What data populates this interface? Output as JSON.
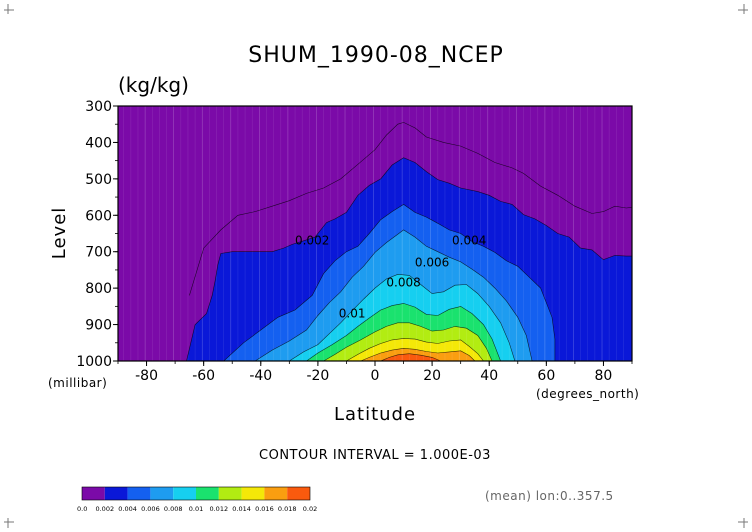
{
  "chart_data": {
    "type": "contour",
    "title": "SHUM_1990-08_NCEP",
    "units": "(kg/kg)",
    "ylabel": "Level",
    "xlabel": "Latitude",
    "x_unit_label": "(degrees_north)",
    "y_unit_label": "(millibar)",
    "xlim": [
      -90,
      90
    ],
    "ylim": [
      1000,
      300
    ],
    "x_ticks": [
      -80,
      -60,
      -40,
      -20,
      0,
      20,
      40,
      60,
      80
    ],
    "y_ticks": [
      300,
      400,
      500,
      600,
      700,
      800,
      900,
      1000
    ],
    "contour_interval_text": "CONTOUR INTERVAL = 1.000E-03",
    "footer_text": "(mean) lon:0..357.5",
    "contour_labels": [
      {
        "text": "0.002",
        "lat": -22,
        "lev": 680
      },
      {
        "text": "0.004",
        "lat": 33,
        "lev": 680
      },
      {
        "text": "0.006",
        "lat": 20,
        "lev": 740
      },
      {
        "text": "0.008",
        "lat": 10,
        "lev": 795
      },
      {
        "text": "0.01",
        "lat": -8,
        "lev": 880
      }
    ],
    "colorbar": {
      "ticks": [
        "0.0",
        "0.002",
        "0.004",
        "0.006",
        "0.008",
        "0.01",
        "0.012",
        "0.014",
        "0.016",
        "0.018",
        "0.02"
      ],
      "colors": [
        "#7b0aa8",
        "#0a18d8",
        "#1460f0",
        "#1e9cf0",
        "#16cff0",
        "#1ae26e",
        "#b2ec12",
        "#f4e808",
        "#fa9e10",
        "#fa5a0e",
        "#f01414"
      ]
    },
    "levels": [
      {
        "value": 0.002,
        "points": [
          [
            -66,
            1000
          ],
          [
            -63,
            900
          ],
          [
            -59,
            870
          ],
          [
            -57,
            820
          ],
          [
            -56,
            780
          ],
          [
            -55,
            735
          ],
          [
            -54,
            705
          ],
          [
            -50,
            700
          ],
          [
            -36,
            700
          ],
          [
            -32,
            690
          ],
          [
            -29,
            680
          ],
          [
            -25,
            670
          ],
          [
            -21,
            660
          ],
          [
            -17,
            620
          ],
          [
            -14,
            610
          ],
          [
            -10,
            592
          ],
          [
            -6,
            545
          ],
          [
            -2,
            518
          ],
          [
            2,
            500
          ],
          [
            6,
            462
          ],
          [
            10,
            442
          ],
          [
            14,
            455
          ],
          [
            18,
            480
          ],
          [
            22,
            502
          ],
          [
            26,
            512
          ],
          [
            30,
            525
          ],
          [
            36,
            535
          ],
          [
            40,
            545
          ],
          [
            44,
            562
          ],
          [
            48,
            570
          ],
          [
            52,
            598
          ],
          [
            56,
            610
          ],
          [
            60,
            628
          ],
          [
            64,
            650
          ],
          [
            68,
            660
          ],
          [
            72,
            690
          ],
          [
            76,
            695
          ],
          [
            80,
            722
          ],
          [
            84,
            710
          ],
          [
            88,
            712
          ],
          [
            90,
            712
          ]
        ]
      },
      {
        "value": 0.004,
        "points": [
          [
            -53,
            1000
          ],
          [
            -46,
            950
          ],
          [
            -40,
            915
          ],
          [
            -34,
            880
          ],
          [
            -28,
            860
          ],
          [
            -22,
            820
          ],
          [
            -18,
            760
          ],
          [
            -14,
            725
          ],
          [
            -10,
            700
          ],
          [
            -6,
            685
          ],
          [
            -2,
            650
          ],
          [
            2,
            612
          ],
          [
            6,
            590
          ],
          [
            10,
            570
          ],
          [
            14,
            592
          ],
          [
            18,
            605
          ],
          [
            22,
            622
          ],
          [
            26,
            640
          ],
          [
            30,
            650
          ],
          [
            34,
            672
          ],
          [
            38,
            685
          ],
          [
            42,
            702
          ],
          [
            46,
            725
          ],
          [
            50,
            740
          ],
          [
            54,
            770
          ],
          [
            58,
            800
          ],
          [
            60,
            840
          ],
          [
            62,
            880
          ],
          [
            63,
            940
          ],
          [
            63,
            1000
          ]
        ]
      },
      {
        "value": 0.006,
        "points": [
          [
            -42,
            1000
          ],
          [
            -36,
            970
          ],
          [
            -30,
            945
          ],
          [
            -24,
            915
          ],
          [
            -20,
            875
          ],
          [
            -16,
            840
          ],
          [
            -12,
            810
          ],
          [
            -8,
            770
          ],
          [
            -4,
            740
          ],
          [
            0,
            702
          ],
          [
            4,
            675
          ],
          [
            8,
            652
          ],
          [
            10,
            640
          ],
          [
            14,
            660
          ],
          [
            18,
            685
          ],
          [
            22,
            700
          ],
          [
            26,
            715
          ],
          [
            30,
            728
          ],
          [
            34,
            748
          ],
          [
            38,
            770
          ],
          [
            42,
            800
          ],
          [
            46,
            835
          ],
          [
            50,
            880
          ],
          [
            53,
            930
          ],
          [
            55,
            1000
          ]
        ]
      },
      {
        "value": 0.008,
        "points": [
          [
            -30,
            1000
          ],
          [
            -25,
            975
          ],
          [
            -20,
            955
          ],
          [
            -16,
            925
          ],
          [
            -12,
            895
          ],
          [
            -8,
            862
          ],
          [
            -4,
            830
          ],
          [
            0,
            800
          ],
          [
            4,
            775
          ],
          [
            8,
            762
          ],
          [
            12,
            765
          ],
          [
            16,
            790
          ],
          [
            20,
            815
          ],
          [
            24,
            810
          ],
          [
            28,
            792
          ],
          [
            32,
            790
          ],
          [
            36,
            815
          ],
          [
            40,
            850
          ],
          [
            44,
            895
          ],
          [
            47,
            950
          ],
          [
            49,
            1000
          ]
        ]
      },
      {
        "value": 0.01,
        "points": [
          [
            -24,
            1000
          ],
          [
            -20,
            978
          ],
          [
            -15,
            955
          ],
          [
            -10,
            930
          ],
          [
            -6,
            905
          ],
          [
            -2,
            882
          ],
          [
            2,
            860
          ],
          [
            6,
            848
          ],
          [
            10,
            842
          ],
          [
            14,
            852
          ],
          [
            18,
            872
          ],
          [
            22,
            875
          ],
          [
            26,
            858
          ],
          [
            30,
            850
          ],
          [
            34,
            870
          ],
          [
            38,
            900
          ],
          [
            41,
            940
          ],
          [
            44,
            1000
          ]
        ]
      },
      {
        "value": 0.012,
        "points": [
          [
            -18,
            1000
          ],
          [
            -14,
            982
          ],
          [
            -10,
            962
          ],
          [
            -5,
            942
          ],
          [
            0,
            920
          ],
          [
            4,
            905
          ],
          [
            8,
            895
          ],
          [
            12,
            895
          ],
          [
            16,
            905
          ],
          [
            20,
            918
          ],
          [
            24,
            915
          ],
          [
            28,
            905
          ],
          [
            32,
            910
          ],
          [
            36,
            930
          ],
          [
            39,
            965
          ],
          [
            41,
            1000
          ]
        ]
      },
      {
        "value": 0.014,
        "points": [
          [
            -10,
            1000
          ],
          [
            -6,
            982
          ],
          [
            -2,
            965
          ],
          [
            2,
            952
          ],
          [
            6,
            942
          ],
          [
            10,
            938
          ],
          [
            14,
            940
          ],
          [
            18,
            948
          ],
          [
            22,
            952
          ],
          [
            26,
            945
          ],
          [
            30,
            942
          ],
          [
            33,
            960
          ],
          [
            36,
            980
          ],
          [
            38,
            1000
          ]
        ]
      },
      {
        "value": 0.016,
        "points": [
          [
            -5,
            1000
          ],
          [
            -2,
            990
          ],
          [
            2,
            978
          ],
          [
            6,
            970
          ],
          [
            10,
            965
          ],
          [
            14,
            968
          ],
          [
            18,
            974
          ],
          [
            22,
            978
          ],
          [
            26,
            975
          ],
          [
            30,
            972
          ],
          [
            33,
            985
          ],
          [
            35,
            1000
          ]
        ]
      },
      {
        "value": 0.018,
        "points": [
          [
            2,
            1000
          ],
          [
            5,
            990
          ],
          [
            8,
            983
          ],
          [
            12,
            980
          ],
          [
            16,
            984
          ],
          [
            20,
            990
          ],
          [
            23,
            1000
          ]
        ]
      },
      {
        "value": 0.0015,
        "points": [
          [
            -65,
            820
          ],
          [
            -60,
            690
          ],
          [
            -54,
            640
          ],
          [
            -48,
            600
          ],
          [
            -42,
            590
          ],
          [
            -36,
            575
          ],
          [
            -30,
            560
          ],
          [
            -24,
            540
          ],
          [
            -18,
            525
          ],
          [
            -12,
            500
          ],
          [
            -6,
            460
          ],
          [
            0,
            420
          ],
          [
            4,
            380
          ],
          [
            8,
            350
          ],
          [
            10,
            345
          ],
          [
            14,
            360
          ],
          [
            18,
            385
          ],
          [
            24,
            400
          ],
          [
            30,
            410
          ],
          [
            36,
            430
          ],
          [
            42,
            455
          ],
          [
            48,
            470
          ],
          [
            52,
            485
          ],
          [
            58,
            520
          ],
          [
            64,
            545
          ],
          [
            70,
            575
          ],
          [
            76,
            595
          ],
          [
            80,
            590
          ],
          [
            84,
            575
          ],
          [
            88,
            580
          ],
          [
            90,
            578
          ]
        ]
      }
    ]
  }
}
